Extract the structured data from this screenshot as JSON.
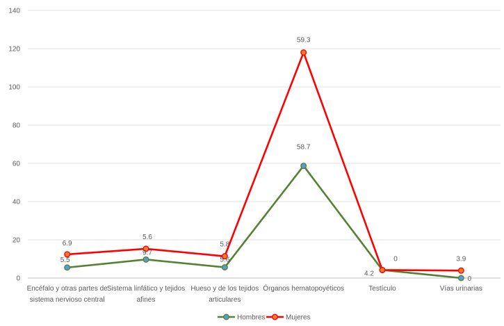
{
  "chart_data": {
    "type": "line",
    "title": "",
    "xlabel": "",
    "ylabel": "",
    "ylim": [
      0,
      140
    ],
    "yticks": [
      0,
      20,
      40,
      60,
      80,
      100,
      120,
      140
    ],
    "grid": true,
    "legend_position": "bottom",
    "categories": [
      [
        "Encéfalo y otras partes de",
        "sistema nervioso central"
      ],
      [
        "Sistema linfático y tejidos",
        "afines"
      ],
      [
        "Hueso y de los tejidos",
        "articulares"
      ],
      [
        "Órganos hematopoyéticos"
      ],
      [
        "Testículo"
      ],
      [
        "Vías urinarias"
      ]
    ],
    "series": [
      {
        "name": "Hombres",
        "color": "#548235",
        "marker_color": "#5b9bd5",
        "values": [
          5.5,
          9.7,
          5.6,
          58.7,
          4.2,
          0
        ],
        "labels": [
          "5.5",
          "9.7",
          "5.6",
          "58.7",
          "4.2",
          "0"
        ]
      },
      {
        "name": "Mujeres",
        "color": "#ff0000",
        "marker_color": "#ed7d31",
        "values": [
          12.4,
          15.3,
          11.4,
          118.0,
          4.2,
          3.9
        ],
        "labels": [
          "6.9",
          "5.6",
          "5.8",
          "59.3",
          "0",
          "3.9"
        ]
      }
    ]
  }
}
